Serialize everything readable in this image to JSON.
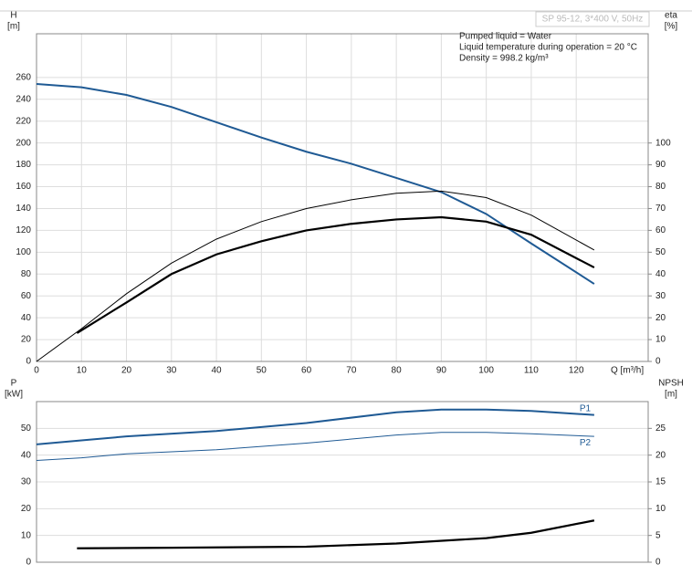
{
  "chart_data": [
    {
      "type": "line",
      "badge": "SP 95-12, 3*400 V, 50Hz",
      "annotations": [
        "Pumped liquid = Water",
        "Liquid temperature during operation = 20 °C",
        "Density = 998.2 kg/m³"
      ],
      "ylabel": [
        "H",
        "[m]"
      ],
      "y2label": [
        "eta",
        "[%]"
      ],
      "xlabel": "Q [m³/h]",
      "xlim": [
        0,
        136
      ],
      "xticks": [
        0,
        10,
        20,
        30,
        40,
        50,
        60,
        70,
        80,
        90,
        100,
        110,
        120
      ],
      "ylim": [
        0,
        300
      ],
      "yticks": [
        0,
        20,
        40,
        60,
        80,
        100,
        120,
        140,
        160,
        180,
        200,
        220,
        240,
        260
      ],
      "y2lim": [
        0,
        150
      ],
      "y2ticks": [
        0,
        10,
        20,
        30,
        40,
        50,
        60,
        70,
        80,
        90,
        100
      ],
      "grid": true,
      "series": [
        {
          "color": "#1f5a94",
          "width": 2,
          "x": [
            0,
            10,
            20,
            30,
            40,
            50,
            60,
            70,
            80,
            90,
            100,
            110,
            124
          ],
          "values": [
            254,
            251,
            244,
            233,
            219,
            205,
            192,
            181,
            168,
            155,
            135,
            108,
            71
          ]
        },
        {
          "color": "#000000",
          "width": 1,
          "axis": "y2",
          "x": [
            0,
            10,
            20,
            30,
            40,
            50,
            60,
            70,
            80,
            90,
            100,
            110,
            124
          ],
          "values": [
            0,
            15,
            31,
            45,
            56,
            64,
            70,
            74,
            77,
            78,
            75,
            67,
            51
          ]
        },
        {
          "color": "#000000",
          "width": 2.2,
          "axis": "y2",
          "x": [
            9,
            20,
            30,
            40,
            50,
            60,
            70,
            80,
            90,
            100,
            110,
            124
          ],
          "values": [
            13,
            27,
            40,
            49,
            55,
            60,
            63,
            65,
            66,
            64,
            58,
            43
          ]
        }
      ]
    },
    {
      "type": "line",
      "ylabel": [
        "P",
        "[kW]"
      ],
      "y2label": [
        "NPSH",
        "[m]"
      ],
      "xlim": [
        0,
        136
      ],
      "ylim": [
        0,
        60
      ],
      "yticks": [
        0,
        10,
        20,
        30,
        40,
        50
      ],
      "y2lim": [
        0,
        30
      ],
      "y2ticks": [
        0,
        5,
        10,
        15,
        20,
        25
      ],
      "grid": true,
      "series": [
        {
          "name": "P1",
          "color": "#1f5a94",
          "width": 2,
          "x": [
            0,
            10,
            20,
            40,
            60,
            80,
            90,
            100,
            110,
            124
          ],
          "values": [
            44,
            45.5,
            47,
            49,
            52,
            56,
            57,
            57,
            56.5,
            55
          ]
        },
        {
          "name": "P2",
          "color": "#1f5a94",
          "width": 1,
          "x": [
            0,
            10,
            20,
            40,
            60,
            80,
            90,
            100,
            110,
            124
          ],
          "values": [
            38,
            39,
            40.5,
            42,
            44.5,
            47.5,
            48.5,
            48.5,
            48,
            47
          ]
        },
        {
          "color": "#000000",
          "width": 2.2,
          "axis": "y2",
          "x": [
            9,
            30,
            60,
            80,
            100,
            110,
            124
          ],
          "values": [
            2.6,
            2.7,
            2.9,
            3.5,
            4.5,
            5.5,
            7.8
          ]
        }
      ]
    }
  ]
}
